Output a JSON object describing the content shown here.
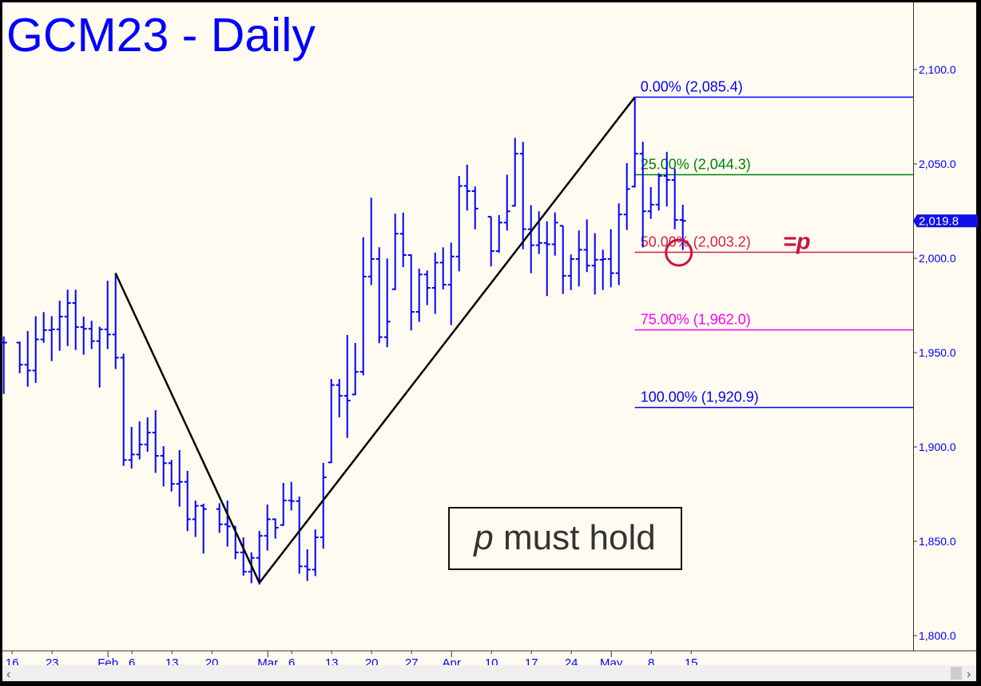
{
  "chart_data": {
    "type": "ohlc",
    "title": "GCM23 - Daily",
    "ylim": [
      1790,
      2135
    ],
    "y_ticks": [
      {
        "value": 2100,
        "label": "2,100.0"
      },
      {
        "value": 2050,
        "label": "2,050.0"
      },
      {
        "value": 2000,
        "label": "2,000.0"
      },
      {
        "value": 1950,
        "label": "1,950.0"
      },
      {
        "value": 1900,
        "label": "1,900.0"
      },
      {
        "value": 1850,
        "label": "1,850.0"
      },
      {
        "value": 1800,
        "label": "1,800.0"
      }
    ],
    "x_ticks": [
      {
        "label": "16",
        "bar": 1
      },
      {
        "label": "23",
        "bar": 6
      },
      {
        "label": "Feb",
        "bar": 13,
        "major": true
      },
      {
        "label": "6",
        "bar": 16
      },
      {
        "label": "13",
        "bar": 21
      },
      {
        "label": "20",
        "bar": 26
      },
      {
        "label": "Mar",
        "bar": 33,
        "major": true
      },
      {
        "label": "6",
        "bar": 36
      },
      {
        "label": "13",
        "bar": 41
      },
      {
        "label": "20",
        "bar": 46
      },
      {
        "label": "27",
        "bar": 51
      },
      {
        "label": "Apr",
        "bar": 56,
        "major": true
      },
      {
        "label": "10",
        "bar": 61
      },
      {
        "label": "17",
        "bar": 66
      },
      {
        "label": "24",
        "bar": 71
      },
      {
        "label": "May",
        "bar": 76,
        "major": true
      },
      {
        "label": "8",
        "bar": 81
      },
      {
        "label": "15",
        "bar": 86
      }
    ],
    "bars_hlc": [
      [
        1958.6,
        1928.5,
        1955.3
      ],
      null,
      [
        1955.8,
        1939.5,
        1943.6
      ],
      [
        1961.4,
        1932.3,
        1940.5
      ],
      [
        1969.3,
        1934.4,
        1957.0
      ],
      [
        1971.5,
        1955.6,
        1961.9
      ],
      [
        1969.3,
        1945.9,
        1962.3
      ],
      [
        1977.5,
        1951.4,
        1969.1
      ],
      [
        1983.3,
        1953.9,
        1976.3
      ],
      [
        1983.3,
        1951.8,
        1963.5
      ],
      [
        1969.1,
        1949.3,
        1962.6
      ],
      [
        1966.9,
        1952.3,
        1956.1
      ],
      [
        1963.7,
        1931.9,
        1962.3
      ],
      [
        1988.1,
        1952.3,
        1959.6
      ],
      [
        1992.2,
        1941.7,
        1947.3
      ],
      [
        1949.4,
        1890.4,
        1893.1
      ],
      [
        1910.6,
        1889.0,
        1896.0
      ],
      [
        1913.5,
        1893.8,
        1901.3
      ],
      [
        1915.7,
        1897.9,
        1907.6
      ],
      [
        1919.5,
        1886.7,
        1895.3
      ],
      [
        1900.4,
        1879.5,
        1891.4
      ],
      [
        1893.1,
        1876.8,
        1880.4
      ],
      [
        1898.3,
        1868.8,
        1881.5
      ],
      [
        1887.3,
        1855.8,
        1861.7
      ],
      [
        1871.6,
        1852.7,
        1868.8
      ],
      [
        1869.9,
        1843.9,
        1867.1
      ],
      null,
      [
        1870.2,
        1854.9,
        1859.0
      ],
      [
        1871.6,
        1847.6,
        1857.9
      ],
      [
        1857.9,
        1840.9,
        1844.1
      ],
      [
        1852.1,
        1832.2,
        1833.9
      ],
      [
        1844.1,
        1828.2,
        1841.2
      ],
      [
        1855.5,
        1827.5,
        1852.9
      ],
      [
        1869.5,
        1845.5,
        1861.7
      ],
      [
        1862.1,
        1851.8,
        1857.2
      ],
      [
        1880.9,
        1858.6,
        1871.6
      ],
      [
        1881.5,
        1866.8,
        1871.3
      ],
      [
        1873.7,
        1833.2,
        1836.7
      ],
      [
        1845.8,
        1829.4,
        1835.0
      ],
      [
        1856.3,
        1832.0,
        1852.1
      ],
      [
        1891.5,
        1846.5,
        1883.9
      ],
      [
        1936.0,
        1891.8,
        1932.8
      ],
      [
        1936.0,
        1916.1,
        1927.1
      ],
      [
        1959.3,
        1905.2,
        1924.6
      ],
      [
        1955.1,
        1927.8,
        1939.8
      ],
      [
        2011.2,
        1938.4,
        1990.3
      ],
      [
        2032.1,
        1986.2,
        1999.6
      ],
      [
        2005.8,
        1955.4,
        1958.2
      ],
      [
        1999.9,
        1953.3,
        1966.4
      ],
      [
        2023.6,
        1983.6,
        2013.0
      ],
      [
        2024.2,
        1995.7,
        2001.7
      ],
      [
        2002.0,
        1962.2,
        1971.6
      ],
      [
        1994.5,
        1966.7,
        1991.4
      ],
      [
        1993.5,
        1975.6,
        1984.3
      ],
      [
        2003.0,
        1970.9,
        1997.7
      ],
      [
        2005.8,
        1983.9,
        1986.0
      ],
      [
        2008.3,
        1965.0,
        2000.9
      ],
      [
        2043.6,
        1993.5,
        2038.3
      ],
      [
        2049.6,
        2025.7,
        2035.6
      ],
      [
        2038.0,
        2015.8,
        2026.3
      ],
      null,
      [
        2022.0,
        1996.1,
        2003.8
      ],
      [
        2022.9,
        2003.3,
        2018.9
      ],
      [
        2044.3,
        2015.1,
        2024.9
      ],
      [
        2063.8,
        2027.8,
        2055.4
      ],
      [
        2061.7,
        2005.2,
        2015.4
      ],
      [
        2028.1,
        1992.5,
        2006.9
      ],
      [
        2024.9,
        2002.7,
        2008.1
      ],
      [
        2019.6,
        1980.4,
        2007.4
      ],
      [
        2024.3,
        2001.8,
        2018.9
      ],
      [
        2017.2,
        1981.5,
        1990.7
      ],
      [
        2002.0,
        1983.6,
        1999.6
      ],
      [
        2014.8,
        1985.5,
        2004.5
      ],
      [
        2020.6,
        1993.1,
        1996.1
      ],
      [
        2013.3,
        1981.2,
        1999.2
      ],
      [
        2004.5,
        1983.6,
        1999.6
      ],
      [
        2015.4,
        1985.0,
        1992.1
      ],
      [
        2029.1,
        1986.2,
        2023.2
      ],
      [
        2050.4,
        2015.4,
        2036.7
      ],
      [
        2085.4,
        2038.0,
        2055.4
      ],
      [
        2061.7,
        2006.2,
        2024.9
      ],
      [
        2037.7,
        2021.3,
        2028.4
      ],
      [
        2045.1,
        2025.7,
        2043.6
      ],
      [
        2056.4,
        2027.8,
        2041.5
      ],
      [
        2047.6,
        2015.8,
        2020.3
      ],
      [
        2028.4,
        2004.8,
        2019.8
      ]
    ],
    "zigzag": [
      {
        "bar": 14,
        "price": 1992.0
      },
      {
        "bar": 32,
        "price": 1828.0
      },
      {
        "bar": 79,
        "price": 2085.4
      }
    ],
    "fib_levels": [
      {
        "label": "0.00% (2,085.4)",
        "price": 2085.4,
        "color": "#0000ff"
      },
      {
        "label": "25.00% (2,044.3)",
        "price": 2044.3,
        "color": "#008000"
      },
      {
        "label": "50.00% (2,003.2)",
        "price": 2003.2,
        "color": "#d2224a"
      },
      {
        "label": "75.00% (1,962.0)",
        "price": 1962.0,
        "color": "#ff00ff"
      },
      {
        "label": "100.00% (1,920.9)",
        "price": 1920.9,
        "color": "#0000ff"
      }
    ],
    "last_price": {
      "value": 2019.8,
      "label": "2,019.8"
    },
    "annotations": {
      "p_marker": "=p",
      "circle_bar": 85,
      "circle_price": 2000.0,
      "note_italic": "p",
      "note_rest": " must hold"
    },
    "colors": {
      "bars": "#0000ff",
      "background": "#fffbf0",
      "zigzag": "#000000",
      "annotation": "#c8143c"
    }
  },
  "scrollbar": {
    "left_arrow": "‹",
    "right_arrow": "›"
  }
}
